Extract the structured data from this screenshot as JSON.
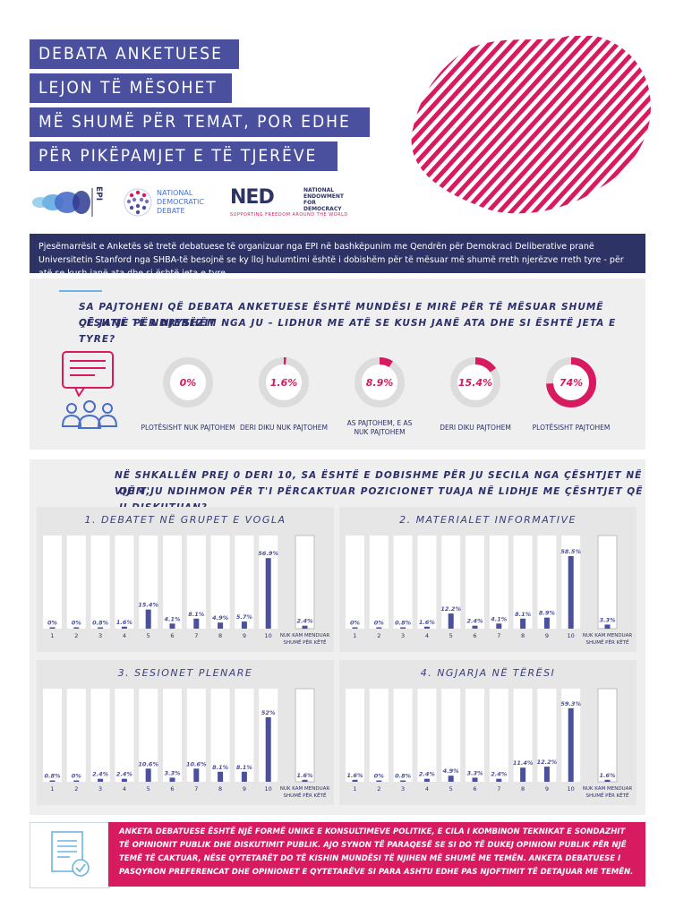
{
  "header": {
    "title_lines": [
      "DEBATA ANKETUESE",
      "LEJON TË MËSOHET",
      "MË SHUMË PËR TEMAT, POR EDHE",
      "PËR PIKËPAMJET E TË TJERËVE"
    ]
  },
  "logos": {
    "epi": "EPI",
    "ndd": "NATIONAL DEMOCRATIC DEBATE",
    "ned_mark": "NED",
    "ned_name": "NATIONAL ENDOWMENT FOR DEMOCRACY",
    "ned_tagline": "SUPPORTING FREEDOM AROUND THE WORLD"
  },
  "intro": "Pjesëmarrësit e Anketës së tretë debatuese të organizuar nga EPI në bashkëpunim me Qendrën për Demokraci Deliberative pranë Universitetin Stanford nga SHBA-të besojnë se ky lloj hulumtimi është i dobishëm për të mësuar më shumë rreth njerëzve rreth tyre - për atë se kush janë ata dhe si është jeta e tyre.",
  "colors": {
    "navy": "#2e3366",
    "indigo": "#4a4f9e",
    "magenta": "#d81b60"
  },
  "agreement": {
    "question": "SA PAJTOHENI QË DEBATA ANKETUESE ËSHTË MUNDËSI E MIRË PËR TË MËSUAR SHUMË ÇËSHTJE PËR NJERËZIT QË JANË TË NDRYSHËM NGA JU – LIDHUR ME ATË SE KUSH JANË ATA DHE SI ËSHTË JETA E TYRE?",
    "question_lines": [
      "SA PAJTOHENI QË DEBATA ANKETUESE ËSHTË MUNDËSI E MIRË PËR TË MËSUAR SHUMË ÇËSHTJE PËR NJERËZIT",
      "QË JANË TË NDRYSHËM NGA JU – LIDHUR ME ATË SE KUSH JANË ATA DHE SI ËSHTË JETA E TYRE?"
    ],
    "items": [
      {
        "pct": "0%",
        "value": 0,
        "label": "PLOTËSISHT NUK PAJTOHEM"
      },
      {
        "pct": "1.6%",
        "value": 1.6,
        "label": "DERI DIKU NUK PAJTOHEM"
      },
      {
        "pct": "8.9%",
        "value": 8.9,
        "label": "AS PAJTOHEM, E AS NUK PAJTOHEM"
      },
      {
        "pct": "15.4%",
        "value": 15.4,
        "label": "DERI DIKU PAJTOHEM"
      },
      {
        "pct": "74%",
        "value": 74,
        "label": "PLOTËSISHT PAJTOHEM"
      }
    ]
  },
  "scale": {
    "question_lines": [
      "NË SHKALLËN PREJ 0 DERI 10, SA ËSHTË E DOBISHME PËR JU SECILA NGA ÇËSHTJET NË VIJIM,",
      "QË T'JU NDIHMON PËR T'I PËRCAKTUAR POZICIONET TUAJA NË LIDHJE ME ÇËSHTJET QË U DISKUTUAN?"
    ]
  },
  "chart_data": [
    {
      "type": "bar",
      "title": "1. DEBATET NË GRUPET E VOGLA",
      "categories": [
        "1",
        "2",
        "3",
        "4",
        "5",
        "6",
        "7",
        "8",
        "9",
        "10",
        "NUK KAM MENDUAR SHUMË PËR KËTË"
      ],
      "values": [
        0,
        0,
        0.8,
        1.6,
        15.4,
        4.1,
        8.1,
        4.9,
        5.7,
        56.9,
        2.4
      ],
      "labels": [
        "0%",
        "0%",
        "0.8%",
        "1.6%",
        "15.4%",
        "4.1%",
        "8.1%",
        "4.9%",
        "5.7%",
        "56.9%",
        "2.4%"
      ]
    },
    {
      "type": "bar",
      "title": "2. MATERIALET INFORMATIVE",
      "categories": [
        "1",
        "2",
        "3",
        "4",
        "5",
        "6",
        "7",
        "8",
        "9",
        "10",
        "NUK KAM MENDUAR SHUMË PËR KËTË"
      ],
      "values": [
        0,
        0,
        0.8,
        1.6,
        12.2,
        2.4,
        4.1,
        8.1,
        8.9,
        58.5,
        3.3
      ],
      "labels": [
        "0%",
        "0%",
        "0.8%",
        "1.6%",
        "12.2%",
        "2.4%",
        "4.1%",
        "8.1%",
        "8.9%",
        "58.5%",
        "3.3%"
      ]
    },
    {
      "type": "bar",
      "title": "3. SESIONET PLENARE",
      "categories": [
        "1",
        "2",
        "3",
        "4",
        "5",
        "6",
        "7",
        "8",
        "9",
        "10",
        "NUK KAM MENDUAR SHUMË PËR KËTË"
      ],
      "values": [
        0.8,
        0,
        2.4,
        2.4,
        10.6,
        3.3,
        10.6,
        8.1,
        8.1,
        52,
        1.6
      ],
      "labels": [
        "0.8%",
        "0%",
        "2.4%",
        "2.4%",
        "10.6%",
        "3.3%",
        "10.6%",
        "8.1%",
        "8.1%",
        "52%",
        "1.6%"
      ]
    },
    {
      "type": "bar",
      "title": "4. NGJARJA NË TËRËSI",
      "categories": [
        "1",
        "2",
        "3",
        "4",
        "5",
        "6",
        "7",
        "8",
        "9",
        "10",
        "NUK KAM MENDUAR SHUMË PËR KËTË"
      ],
      "values": [
        1.6,
        0,
        0.8,
        2.4,
        4.9,
        3.3,
        2.4,
        11.4,
        12.2,
        59.3,
        1.6
      ],
      "labels": [
        "1.6%",
        "0%",
        "0.8%",
        "2.4%",
        "4.9%",
        "3.3%",
        "2.4%",
        "11.4%",
        "12.2%",
        "59.3%",
        "1.6%"
      ]
    }
  ],
  "footer": {
    "text": "ANKETA DEBATUESE ËSHTË NJË FORMË UNIKE E KONSULTIMEVE POLITIKE, E CILA I KOMBINON TEKNIKAT E SONDAZHIT TË OPINIONIT PUBLIK DHE DISKUTIMIT PUBLIK. AJO SYNON TË PARAQESË SE SI DO TË DUKEJ OPINIONI PUBLIK PËR NJË TEMË TË CAKTUAR, NËSE QYTETARËT DO TË KISHIN MUNDËSI TË NJIHEN MË SHUMË ME TEMËN. ANKETA DEBATUESE I PASQYRON PREFERENCAT DHE OPINIONET E QYTETARËVE SI PARA ASHTU EDHE PAS NJOFTIMIT TË DETAJUAR ME TEMËN."
  }
}
